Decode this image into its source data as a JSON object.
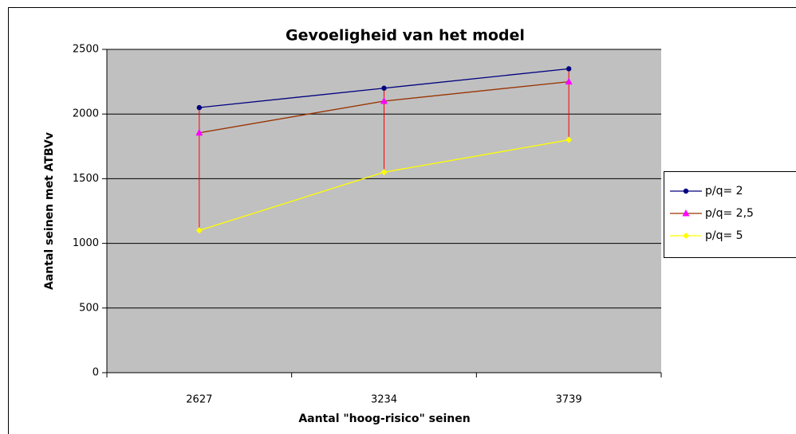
{
  "chart_data": {
    "type": "line",
    "title": "Gevoeligheid van het model",
    "x_label": "Aantal \"hoog-risico\" seinen",
    "y_label": "Aantal seinen met ATBVv",
    "categories": [
      "2627",
      "3234",
      "3739"
    ],
    "series": [
      {
        "name": "p/q= 2",
        "color": "#000080",
        "marker": "circle",
        "marker_color": "#000080",
        "values": [
          2050,
          2200,
          2350
        ]
      },
      {
        "name": "p/q= 2,5",
        "color": "#993300",
        "marker": "triangle",
        "marker_color": "#ff00ff",
        "values": [
          1855,
          2100,
          2250
        ]
      },
      {
        "name": "p/q= 5",
        "color": "#ffff00",
        "marker": "diamond",
        "marker_color": "#ffff00",
        "values": [
          1100,
          1550,
          1800
        ]
      }
    ],
    "high_low_lines": true,
    "high_low_color": "#ff0000",
    "ylim": [
      0,
      2500
    ],
    "yticks": [
      0,
      500,
      1000,
      1500,
      2000,
      2500
    ],
    "grid": true,
    "plot_background": "#c0c0c0",
    "legend": "right"
  }
}
